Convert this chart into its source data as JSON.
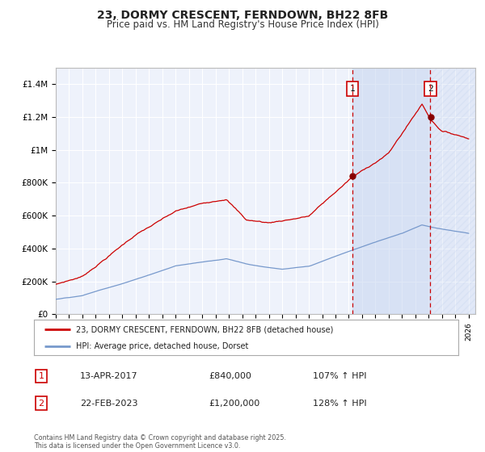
{
  "title": "23, DORMY CRESCENT, FERNDOWN, BH22 8FB",
  "subtitle": "Price paid vs. HM Land Registry's House Price Index (HPI)",
  "title_fontsize": 10,
  "subtitle_fontsize": 8.5,
  "background_color": "#ffffff",
  "plot_bg_color": "#eef2fb",
  "grid_color": "#ffffff",
  "red_line_color": "#cc0000",
  "blue_line_color": "#7799cc",
  "vline_color": "#cc0000",
  "xmin": 1995.0,
  "xmax": 2026.5,
  "ymin": 0,
  "ymax": 1500000,
  "yticks": [
    0,
    200000,
    400000,
    600000,
    800000,
    1000000,
    1200000,
    1400000
  ],
  "ytick_labels": [
    "£0",
    "£200K",
    "£400K",
    "£600K",
    "£800K",
    "£1M",
    "£1.2M",
    "£1.4M"
  ],
  "vline1_x": 2017.28,
  "vline2_x": 2023.13,
  "marker1_value": 840000,
  "marker2_value": 1200000,
  "legend_red_label": "23, DORMY CRESCENT, FERNDOWN, BH22 8FB (detached house)",
  "legend_blue_label": "HPI: Average price, detached house, Dorset",
  "note1_num": "1",
  "note1_date": "13-APR-2017",
  "note1_price": "£840,000",
  "note1_hpi": "107% ↑ HPI",
  "note2_num": "2",
  "note2_date": "22-FEB-2023",
  "note2_price": "£1,200,000",
  "note2_hpi": "128% ↑ HPI",
  "footer": "Contains HM Land Registry data © Crown copyright and database right 2025.\nThis data is licensed under the Open Government Licence v3.0."
}
